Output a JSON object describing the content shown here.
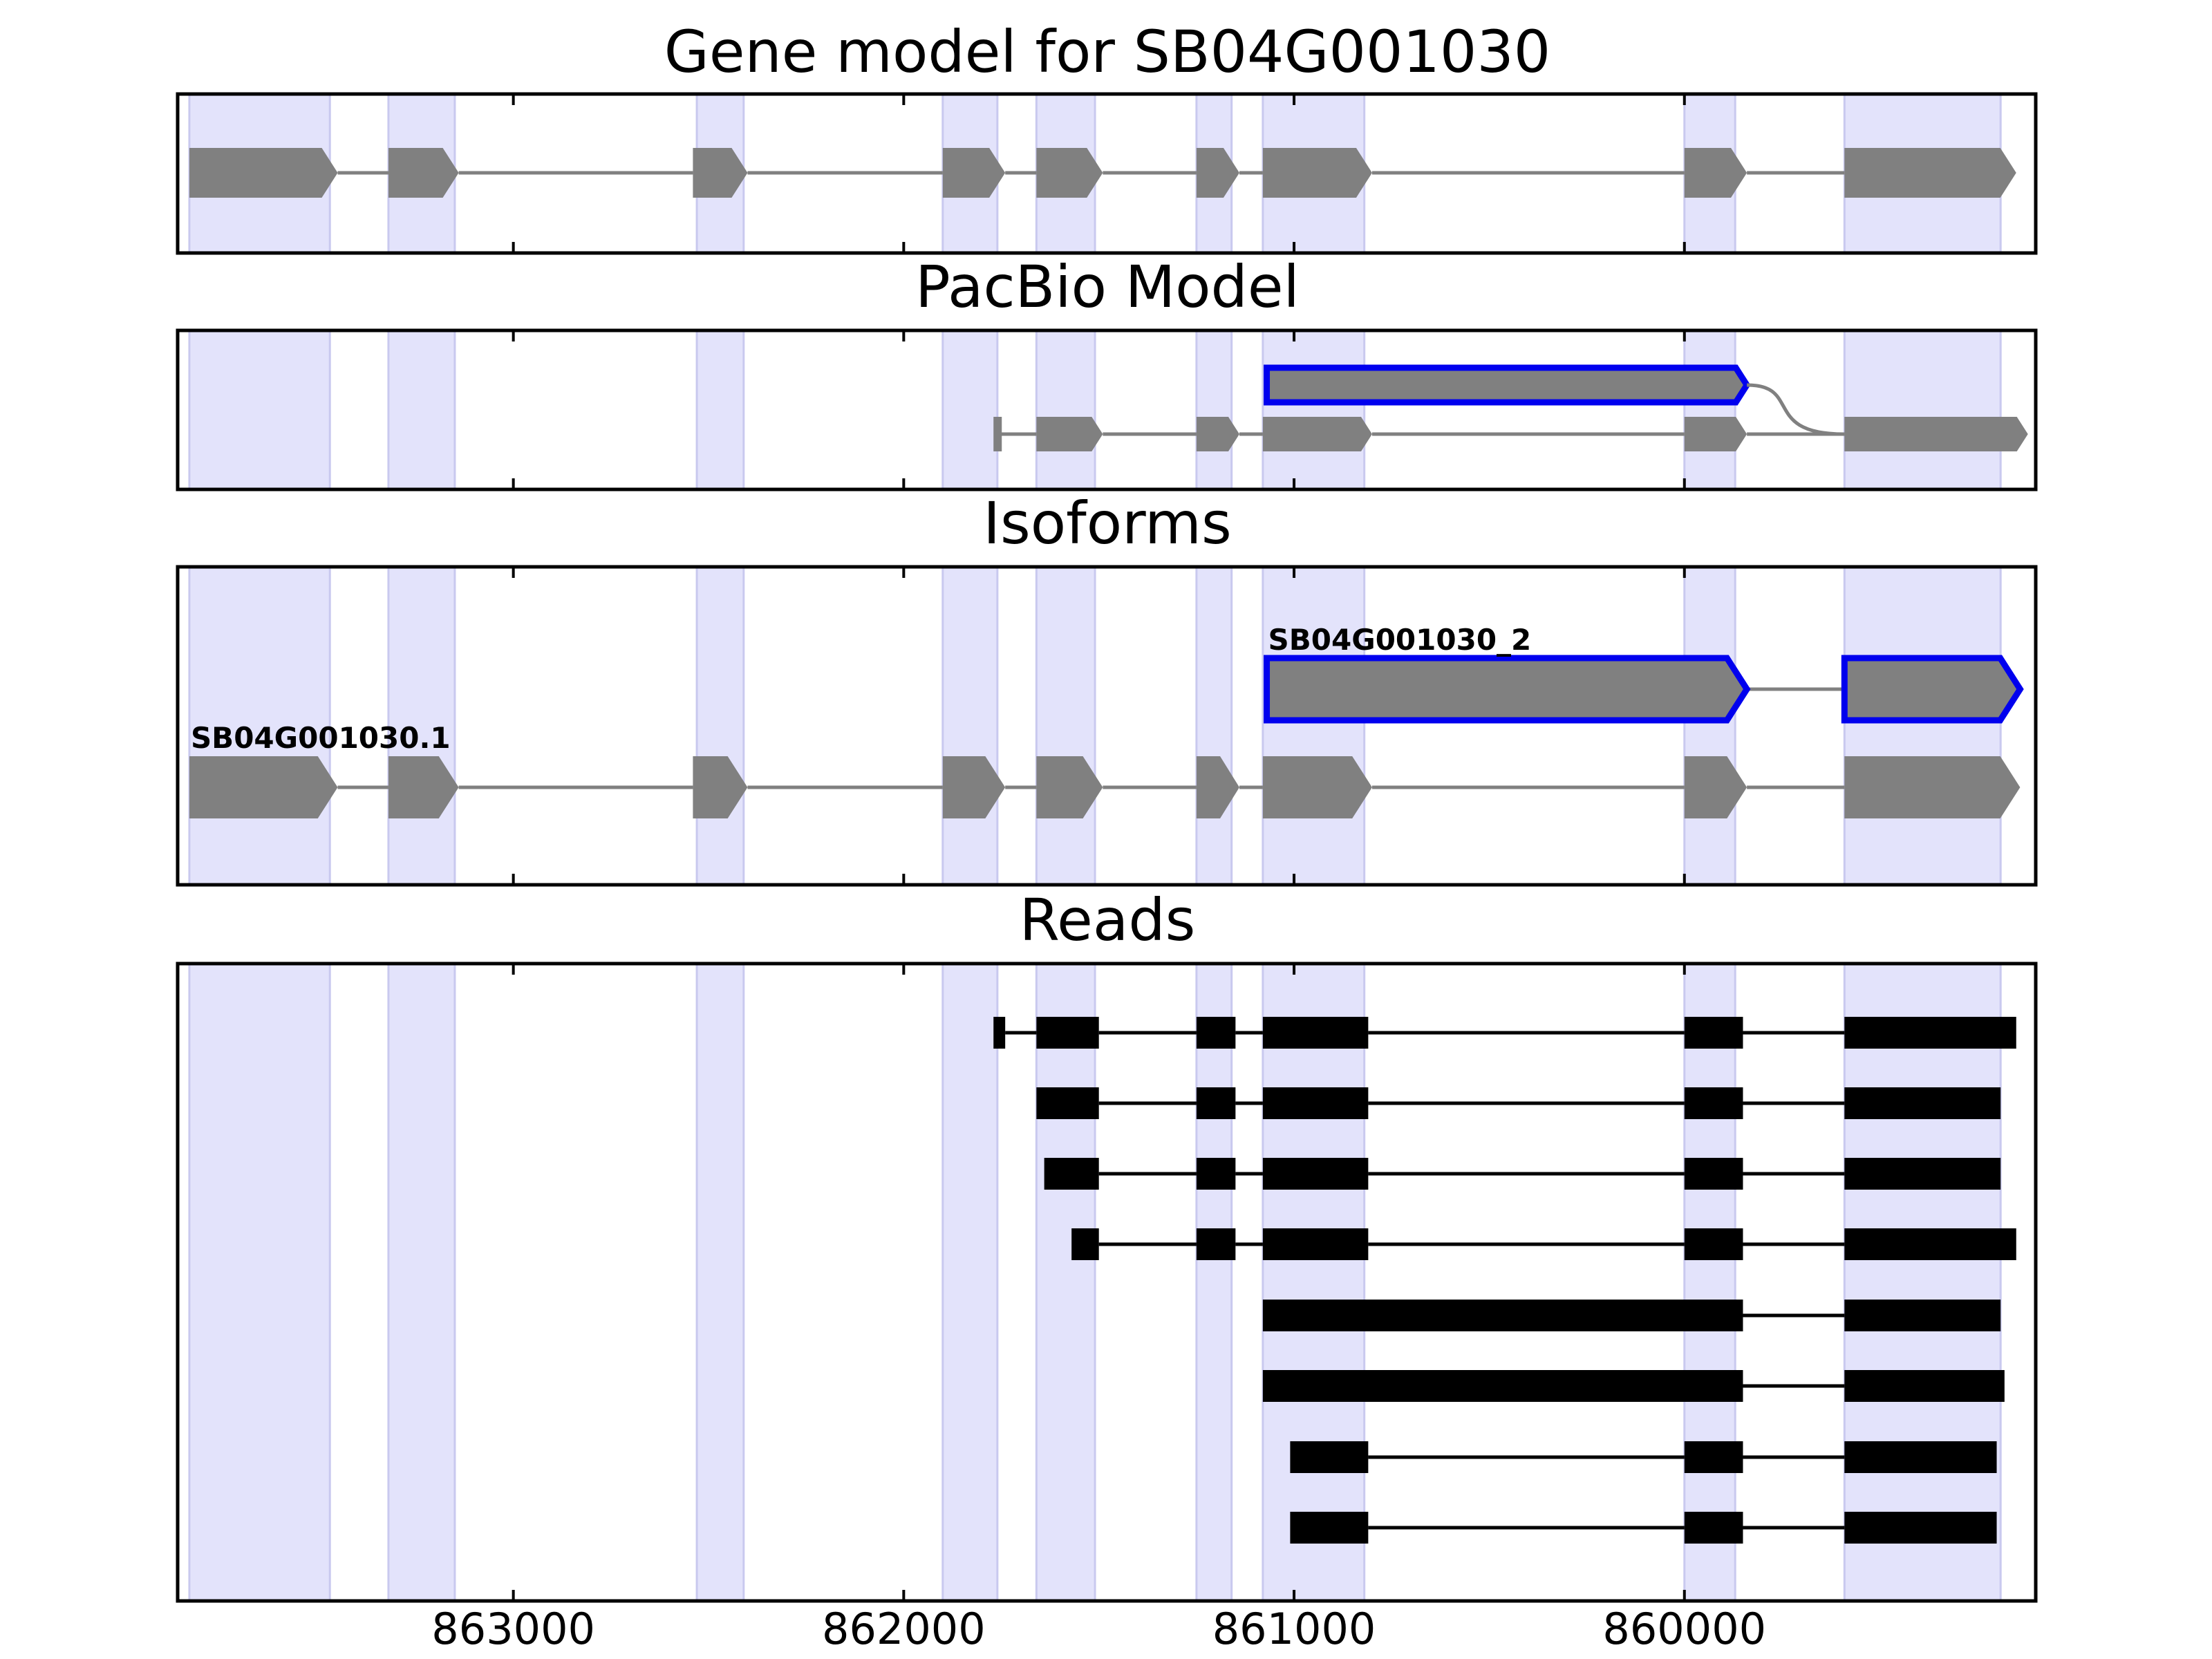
{
  "chart_data": {
    "type": "gene-model-tracks",
    "x_axis": {
      "direction": "reversed",
      "range": [
        863860,
        859100
      ],
      "ticks": [
        863000,
        862000,
        861000,
        860000
      ],
      "tick_labels": [
        "863000",
        "862000",
        "861000",
        "860000"
      ]
    },
    "exon_bands": [
      [
        863830,
        863470
      ],
      [
        863320,
        863150
      ],
      [
        862530,
        862410
      ],
      [
        861900,
        861760
      ],
      [
        861660,
        861510
      ],
      [
        861250,
        861160
      ],
      [
        861080,
        860820
      ],
      [
        860000,
        859870
      ],
      [
        859590,
        859190
      ]
    ],
    "panels": [
      {
        "title": "Gene model for SB04G001030",
        "kind": "arrows",
        "rows": [
          {
            "label": "",
            "highlight": false,
            "exons": [
              [
                863830,
                863450
              ],
              [
                863320,
                863140
              ],
              [
                862540,
                862400
              ],
              [
                861900,
                861740
              ],
              [
                861660,
                861490
              ],
              [
                861250,
                861140
              ],
              [
                861080,
                860800
              ],
              [
                860000,
                859840
              ],
              [
                859590,
                859150
              ]
            ]
          }
        ]
      },
      {
        "title": "PacBio Model",
        "kind": "arrows",
        "curve_join": true,
        "rows": [
          {
            "label": "",
            "highlight": true,
            "exons": [
              [
                861070,
                859840
              ]
            ],
            "join_to": "859590"
          },
          {
            "label": "",
            "highlight": false,
            "exons": [
              [
                861770,
                861750
              ],
              [
                861660,
                861490
              ],
              [
                861250,
                861140
              ],
              [
                861080,
                860800
              ],
              [
                860000,
                859840
              ],
              [
                859590,
                859120
              ]
            ]
          }
        ]
      },
      {
        "title": "Isoforms",
        "kind": "arrows",
        "rows": [
          {
            "label": "SB04G001030_2",
            "highlight": true,
            "exons": [
              [
                861070,
                859840
              ],
              [
                859590,
                859140
              ]
            ]
          },
          {
            "label": "SB04G001030.1",
            "highlight": false,
            "exons": [
              [
                863830,
                863450
              ],
              [
                863320,
                863140
              ],
              [
                862540,
                862400
              ],
              [
                861900,
                861740
              ],
              [
                861660,
                861490
              ],
              [
                861250,
                861140
              ],
              [
                861080,
                860800
              ],
              [
                860000,
                859840
              ],
              [
                859590,
                859140
              ]
            ]
          }
        ]
      },
      {
        "title": "Reads",
        "kind": "reads",
        "rows": [
          {
            "exons": [
              [
                861770,
                861740
              ],
              [
                861660,
                861500
              ],
              [
                861250,
                861150
              ],
              [
                861080,
                860810
              ],
              [
                860000,
                859850
              ],
              [
                859590,
                859150
              ]
            ]
          },
          {
            "exons": [
              [
                861660,
                861500
              ],
              [
                861250,
                861150
              ],
              [
                861080,
                860810
              ],
              [
                860000,
                859850
              ],
              [
                859590,
                859190
              ]
            ]
          },
          {
            "exons": [
              [
                861640,
                861500
              ],
              [
                861250,
                861150
              ],
              [
                861080,
                860810
              ],
              [
                860000,
                859850
              ],
              [
                859590,
                859190
              ]
            ]
          },
          {
            "exons": [
              [
                861570,
                861500
              ],
              [
                861250,
                861150
              ],
              [
                861080,
                860810
              ],
              [
                860000,
                859850
              ],
              [
                859590,
                859150
              ]
            ]
          },
          {
            "exons": [
              [
                861080,
                859850
              ],
              [
                859590,
                859190
              ]
            ]
          },
          {
            "exons": [
              [
                861080,
                859850
              ],
              [
                859590,
                859180
              ]
            ]
          },
          {
            "exons": [
              [
                861010,
                860810
              ],
              [
                860000,
                859850
              ],
              [
                859590,
                859200
              ]
            ]
          },
          {
            "exons": [
              [
                861010,
                860810
              ],
              [
                860000,
                859850
              ],
              [
                859590,
                859200
              ]
            ]
          }
        ]
      }
    ]
  }
}
